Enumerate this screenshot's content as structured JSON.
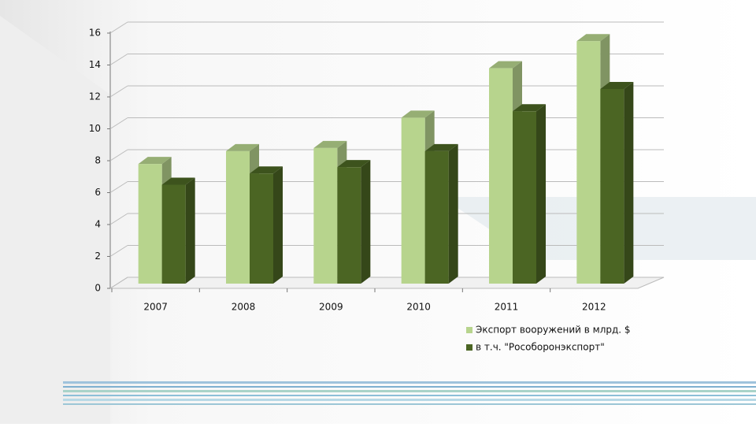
{
  "chart_data": {
    "type": "bar3d",
    "categories": [
      "2007",
      "2008",
      "2009",
      "2010",
      "2011",
      "2012"
    ],
    "series": [
      {
        "name": "Экспорт вооружений в млрд. $",
        "color": "#b7d48d",
        "values": [
          7.5,
          8.3,
          8.5,
          10.4,
          13.5,
          15.2
        ]
      },
      {
        "name": "в т.ч. \"Рособоронэкспорт\"",
        "color": "#4b6523",
        "values": [
          6.2,
          6.9,
          7.3,
          8.3,
          10.8,
          12.2
        ]
      }
    ],
    "ylim": [
      0,
      16
    ],
    "yticks": [
      0,
      2,
      4,
      6,
      8,
      10,
      12,
      14,
      16
    ],
    "grid": true,
    "legend": "bottom-right"
  }
}
